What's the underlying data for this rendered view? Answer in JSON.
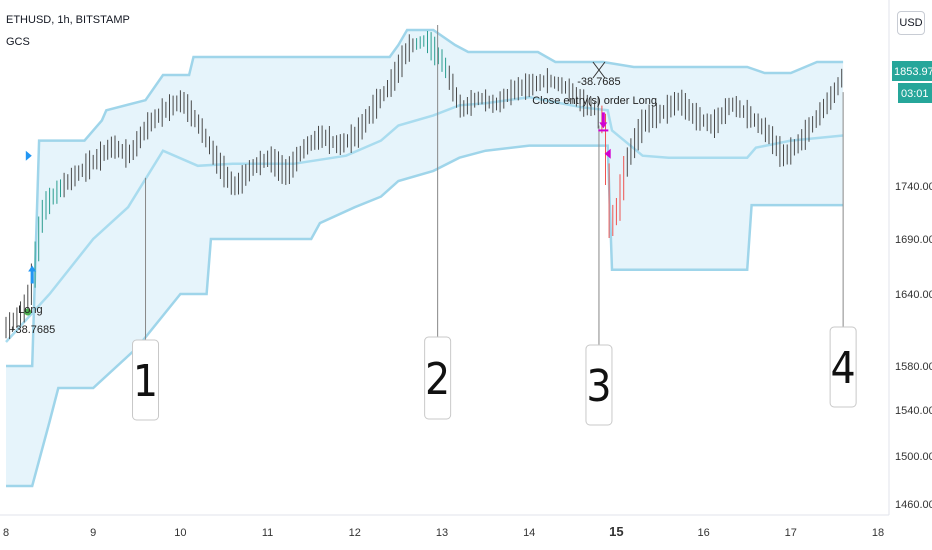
{
  "header": {
    "title": "ETHUSD, 1h, BITSTAMP",
    "indicator": "GCS",
    "currency": "USD"
  },
  "colors": {
    "channel_fill": "#e6f4fb",
    "channel_line": "#9fd5ea",
    "midline": "#a9dcef",
    "candle": "#4a4a4a",
    "candle_up": "#2a9d8f",
    "candle_down": "#ef5350",
    "price_tag": "#26a69a",
    "callout_line": "#888888",
    "marker_blue": "#2196f3",
    "marker_magenta": "#d100d1",
    "marker_green": "#4caf50",
    "axis_text": "#333333"
  },
  "trade_labels": {
    "entry_text": "Long",
    "entry_value": "+38.7685",
    "exit_value": "-38.7685",
    "exit_text": "Close entry(s) order Long"
  },
  "callouts": [
    {
      "label": "1",
      "x": 9.6,
      "y": 1748
    },
    {
      "label": "2",
      "x": 12.95,
      "y": 1900
    },
    {
      "label": "3",
      "x": 14.8,
      "y": 1800
    },
    {
      "label": "4",
      "x": 17.6,
      "y": 1833
    }
  ],
  "chart_data": {
    "type": "line",
    "symbol": "ETHUSD",
    "timeframe": "1h",
    "exchange": "BITSTAMP",
    "x_ticks": [
      "8",
      "9",
      "10",
      "11",
      "12",
      "13",
      "14",
      "15",
      "16",
      "17",
      "18"
    ],
    "xlim": [
      8,
      18
    ],
    "y_ticks": [
      "1460.00",
      "1500.00",
      "1540.00",
      "1580.00",
      "1640.00",
      "1690.00",
      "1740.00"
    ],
    "ylim": [
      1460,
      1900
    ],
    "last_price": "1853.97",
    "countdown": "03:01",
    "series": [
      {
        "kind": "upper_band",
        "x": [
          8.0,
          8.3,
          8.38,
          8.5,
          8.9,
          9.1,
          9.15,
          9.6,
          9.8,
          10.1,
          10.15,
          12.4,
          12.5,
          12.6,
          12.9,
          13.15,
          13.3,
          14.1,
          14.3,
          14.6,
          14.85,
          15.2,
          15.6,
          16.0,
          16.5,
          16.7,
          17.0,
          17.3,
          17.6
        ],
        "y": [
          1580,
          1580,
          1785,
          1785,
          1785,
          1805,
          1815,
          1825,
          1850,
          1850,
          1868,
          1868,
          1880,
          1895,
          1895,
          1880,
          1873,
          1873,
          1863,
          1863,
          1863,
          1858,
          1858,
          1858,
          1858,
          1852,
          1852,
          1863,
          1863
        ]
      },
      {
        "kind": "lower_band",
        "x": [
          8.0,
          8.3,
          8.5,
          8.6,
          9.0,
          9.5,
          10.0,
          10.3,
          10.35,
          11.5,
          11.6,
          12.0,
          12.3,
          12.5,
          12.9,
          13.2,
          13.5,
          14.0,
          14.6,
          14.9,
          14.95,
          15.5,
          16.1,
          16.5,
          16.55,
          17.0,
          17.6
        ],
        "y": [
          1475,
          1475,
          1530,
          1560,
          1560,
          1595,
          1640,
          1640,
          1690,
          1690,
          1705,
          1720,
          1730,
          1745,
          1755,
          1768,
          1775,
          1780,
          1780,
          1780,
          1662,
          1662,
          1662,
          1662,
          1722,
          1722,
          1722
        ]
      },
      {
        "kind": "midline",
        "x": [
          8.0,
          8.5,
          9.0,
          9.4,
          9.8,
          10.2,
          10.6,
          11.3,
          11.9,
          12.3,
          12.5,
          12.9,
          13.2,
          13.5,
          14.0,
          14.6,
          14.9,
          14.95,
          15.3,
          15.6,
          16.0,
          16.5,
          16.6,
          17.0,
          17.6
        ],
        "y": [
          1600,
          1640,
          1690,
          1720,
          1775,
          1760,
          1762,
          1762,
          1770,
          1785,
          1800,
          1810,
          1820,
          1822,
          1828,
          1818,
          1815,
          1795,
          1770,
          1768,
          1768,
          1768,
          1778,
          1785,
          1790
        ]
      },
      {
        "kind": "price_trace",
        "x": [
          8.0,
          8.2,
          8.3,
          8.4,
          8.6,
          8.8,
          9.0,
          9.2,
          9.4,
          9.6,
          9.8,
          10.0,
          10.2,
          10.4,
          10.6,
          10.8,
          11.0,
          11.2,
          11.4,
          11.6,
          11.8,
          12.0,
          12.2,
          12.4,
          12.6,
          12.8,
          13.0,
          13.2,
          13.4,
          13.6,
          13.8,
          14.0,
          14.2,
          14.4,
          14.6,
          14.75,
          14.85,
          14.9,
          15.0,
          15.1,
          15.3,
          15.5,
          15.7,
          15.9,
          16.1,
          16.3,
          16.5,
          16.7,
          16.9,
          17.1,
          17.3,
          17.5,
          17.6
        ],
        "y": [
          1612,
          1628,
          1658,
          1718,
          1738,
          1752,
          1765,
          1780,
          1770,
          1800,
          1815,
          1825,
          1800,
          1765,
          1738,
          1758,
          1768,
          1752,
          1778,
          1790,
          1780,
          1790,
          1818,
          1842,
          1878,
          1885,
          1862,
          1815,
          1828,
          1820,
          1835,
          1840,
          1845,
          1838,
          1822,
          1816,
          1800,
          1700,
          1720,
          1765,
          1805,
          1812,
          1825,
          1808,
          1800,
          1822,
          1810,
          1795,
          1768,
          1785,
          1810,
          1835,
          1854
        ]
      }
    ]
  }
}
